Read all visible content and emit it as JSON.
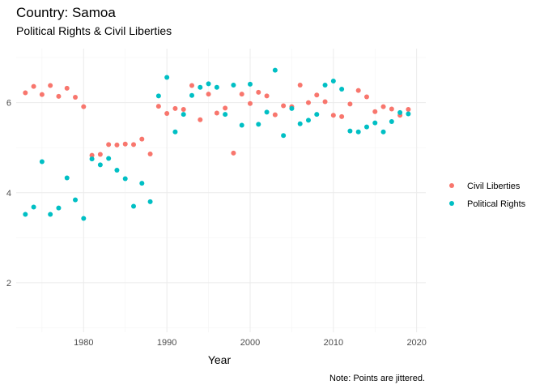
{
  "chart_data": {
    "type": "scatter",
    "title": "Country: Samoa",
    "subtitle": "Political Rights & Civil Liberties",
    "xlabel": "Year",
    "ylabel": "",
    "caption": "Note: Points are jittered.",
    "xlim": [
      1971.9,
      2021.1
    ],
    "ylim": [
      0.9,
      7.2
    ],
    "x_ticks": [
      1980,
      1990,
      2000,
      2010,
      2020
    ],
    "y_ticks": [
      2,
      4,
      6
    ],
    "grid": true,
    "legend_position": "right",
    "series": [
      {
        "name": "Civil Liberties",
        "color": "#F8766D",
        "x": [
          1973,
          1974,
          1975,
          1976,
          1977,
          1978,
          1979,
          1980,
          1981,
          1982,
          1983,
          1984,
          1985,
          1986,
          1987,
          1988,
          1989,
          1990,
          1991,
          1992,
          1993,
          1994,
          1995,
          1996,
          1997,
          1998,
          1999,
          2000,
          2001,
          2002,
          2003,
          2004,
          2005,
          2006,
          2007,
          2008,
          2009,
          2010,
          2011,
          2012,
          2013,
          2014,
          2015,
          2016,
          2017,
          2018,
          2019
        ],
        "y": [
          6.22,
          6.36,
          6.18,
          6.38,
          6.14,
          6.32,
          6.12,
          5.91,
          4.83,
          4.85,
          5.07,
          5.06,
          5.08,
          5.07,
          5.19,
          4.86,
          5.92,
          5.76,
          5.87,
          5.85,
          6.38,
          5.62,
          6.19,
          5.77,
          5.88,
          4.88,
          6.19,
          5.98,
          6.23,
          6.15,
          5.73,
          5.93,
          5.91,
          6.39,
          6.0,
          6.17,
          6.02,
          5.72,
          5.69,
          5.97,
          6.27,
          6.13,
          5.8,
          5.91,
          5.86,
          5.72,
          5.85
        ]
      },
      {
        "name": "Political Rights",
        "color": "#00BFC4",
        "x": [
          1973,
          1974,
          1975,
          1976,
          1977,
          1978,
          1979,
          1980,
          1981,
          1982,
          1983,
          1984,
          1985,
          1986,
          1987,
          1988,
          1989,
          1990,
          1991,
          1992,
          1993,
          1994,
          1995,
          1996,
          1997,
          1998,
          1999,
          2000,
          2001,
          2002,
          2003,
          2004,
          2005,
          2006,
          2007,
          2008,
          2009,
          2010,
          2011,
          2012,
          2013,
          2014,
          2015,
          2016,
          2017,
          2018,
          2019
        ],
        "y": [
          3.52,
          3.68,
          4.69,
          3.52,
          3.66,
          4.33,
          3.84,
          3.43,
          4.75,
          4.62,
          4.76,
          4.5,
          4.31,
          3.7,
          4.21,
          3.8,
          6.15,
          6.56,
          5.35,
          5.74,
          6.16,
          6.34,
          6.42,
          6.34,
          5.74,
          6.39,
          5.5,
          6.41,
          5.52,
          5.79,
          6.72,
          5.27,
          5.87,
          5.53,
          5.61,
          5.74,
          6.39,
          6.48,
          6.3,
          5.37,
          5.35,
          5.46,
          5.55,
          5.35,
          5.58,
          5.78,
          5.75
        ]
      }
    ]
  }
}
